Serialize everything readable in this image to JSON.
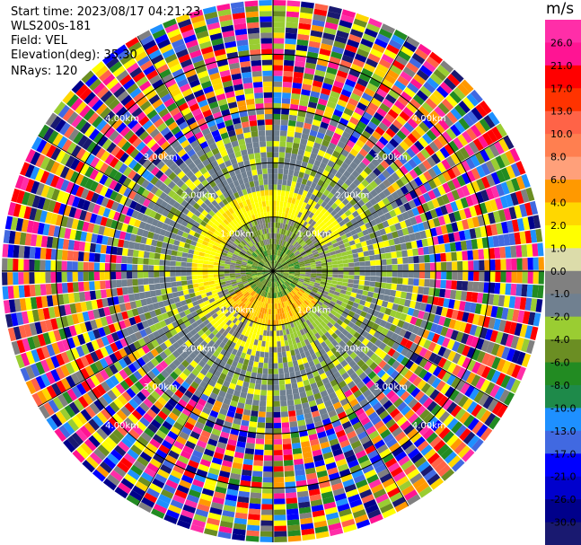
{
  "info": {
    "start_time": "Start time: 2023/08/17 04:21:23",
    "instrument": "WLS200s-181",
    "field": "Field: VEL",
    "elevation": "Elevation(deg): 35.30",
    "nrays": "NRays: 120"
  },
  "chart_data": {
    "type": "heatmap",
    "projection": "polar-ppi",
    "field": "VEL",
    "units": "m/s",
    "nrays": 120,
    "elevation_deg": 35.3,
    "range_rings": [
      {
        "label": "1.00km",
        "value": 1.0
      },
      {
        "label": "2.00km",
        "value": 2.0
      },
      {
        "label": "3.00km",
        "value": 3.0
      },
      {
        "label": "4.00km",
        "value": 4.0
      }
    ],
    "max_range_km": 5.0,
    "colorbar": {
      "title": "m/s",
      "ticks": [
        "26.0",
        "21.0",
        "17.0",
        "13.0",
        "10.0",
        "8.0",
        "6.0",
        "4.0",
        "2.0",
        "1.0",
        "0.0",
        "-1.0",
        "-2.0",
        "-4.0",
        "-6.0",
        "-8.0",
        "-10.0",
        "-13.0",
        "-17.0",
        "-21.0",
        "-26.0",
        "-30.0"
      ],
      "colors": [
        "#ff2ea8",
        "#ff1493",
        "#ff0000",
        "#ff3300",
        "#ff6347",
        "#ff7f50",
        "#ffa07a",
        "#ff9900",
        "#ffd700",
        "#ffff00",
        "#dcdcaa",
        "#808080",
        "#708090",
        "#9acd32",
        "#6b8e23",
        "#228b22",
        "#1e8a4a",
        "#1e90ff",
        "#4169e1",
        "#0000ff",
        "#0000cd",
        "#00008b",
        "#191970"
      ]
    },
    "regions": [
      {
        "range_km": [
          0.0,
          0.5
        ],
        "velocity": -4.0
      },
      {
        "range_km": [
          0.5,
          1.0
        ],
        "velocity": 1.5
      },
      {
        "range_km": [
          1.0,
          1.5
        ],
        "velocity": 0.0
      },
      {
        "range_km": [
          1.5,
          2.5
        ],
        "velocity": 0.0
      },
      {
        "range_km": [
          2.5,
          5.0
        ],
        "velocity": "noise"
      }
    ]
  }
}
